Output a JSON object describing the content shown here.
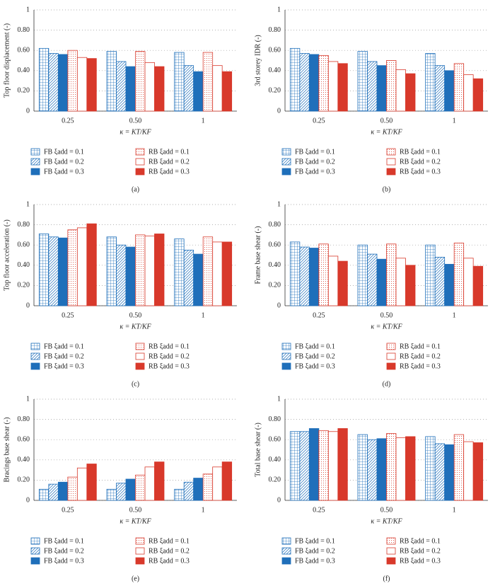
{
  "chart_data": [
    {
      "type": "bar",
      "label": "(a)",
      "ylabel": "Top floor displacement (-)",
      "xlabel": "κ = KT/KF",
      "categories": [
        "0.25",
        "0.50",
        "1"
      ],
      "ylim": [
        0,
        1
      ],
      "yticks": [
        0,
        {
          "value": 0.2,
          "label": "0.20"
        },
        {
          "value": 0.4,
          "label": "0.40"
        },
        {
          "value": 0.6,
          "label": "0.60"
        },
        {
          "value": 0.8,
          "label": "0.80"
        },
        1
      ],
      "grid": true,
      "series": [
        {
          "name": "FB ξadd = 0.1",
          "color": "#1f6fba",
          "pattern": "grid",
          "values": [
            0.62,
            0.59,
            0.58
          ]
        },
        {
          "name": "FB ξadd = 0.2",
          "color": "#1f6fba",
          "pattern": "hatch",
          "values": [
            0.57,
            0.49,
            0.45
          ]
        },
        {
          "name": "FB ξadd = 0.3",
          "color": "#1f6fba",
          "pattern": "solid",
          "values": [
            0.56,
            0.44,
            0.39
          ]
        },
        {
          "name": "RB ξadd = 0.1",
          "color": "#d8392b",
          "pattern": "dots",
          "values": [
            0.6,
            0.59,
            0.58
          ]
        },
        {
          "name": "RB ξadd = 0.2",
          "color": "#d8392b",
          "pattern": "none",
          "values": [
            0.53,
            0.48,
            0.45
          ]
        },
        {
          "name": "RB ξadd = 0.3",
          "color": "#d8392b",
          "pattern": "solid",
          "values": [
            0.52,
            0.44,
            0.39
          ]
        }
      ]
    },
    {
      "type": "bar",
      "label": "(b)",
      "ylabel": "3rd storey IDR (-)",
      "xlabel": "κ = KT/KF",
      "categories": [
        "0.25",
        "0.50",
        "1"
      ],
      "ylim": [
        0,
        1
      ],
      "yticks": [
        0,
        {
          "value": 0.2,
          "label": "0.20"
        },
        {
          "value": 0.4,
          "label": "0.40"
        },
        {
          "value": 0.6,
          "label": "0.60"
        },
        {
          "value": 0.8,
          "label": "0.80"
        },
        1
      ],
      "grid": true,
      "series": [
        {
          "name": "FB ξadd = 0.1",
          "color": "#1f6fba",
          "pattern": "grid",
          "values": [
            0.62,
            0.59,
            0.57
          ]
        },
        {
          "name": "FB ξadd = 0.2",
          "color": "#1f6fba",
          "pattern": "hatch",
          "values": [
            0.57,
            0.49,
            0.45
          ]
        },
        {
          "name": "FB ξadd = 0.3",
          "color": "#1f6fba",
          "pattern": "solid",
          "values": [
            0.56,
            0.45,
            0.4
          ]
        },
        {
          "name": "RB ξadd = 0.1",
          "color": "#d8392b",
          "pattern": "dots",
          "values": [
            0.55,
            0.5,
            0.47
          ]
        },
        {
          "name": "RB ξadd = 0.2",
          "color": "#d8392b",
          "pattern": "none",
          "values": [
            0.49,
            0.41,
            0.36
          ]
        },
        {
          "name": "RB ξadd = 0.3",
          "color": "#d8392b",
          "pattern": "solid",
          "values": [
            0.47,
            0.37,
            0.32
          ]
        }
      ]
    },
    {
      "type": "bar",
      "label": "(c)",
      "ylabel": "Top floor acceleration (-)",
      "xlabel": "κ = KT/KF",
      "categories": [
        "0.25",
        "0.50",
        "1"
      ],
      "ylim": [
        0,
        1
      ],
      "yticks": [
        0,
        {
          "value": 0.2,
          "label": "0.20"
        },
        {
          "value": 0.4,
          "label": "0.40"
        },
        {
          "value": 0.6,
          "label": "0.60"
        },
        {
          "value": 0.8,
          "label": "0.80"
        },
        1
      ],
      "grid": true,
      "series": [
        {
          "name": "FB ξadd = 0.1",
          "color": "#1f6fba",
          "pattern": "grid",
          "values": [
            0.71,
            0.68,
            0.66
          ]
        },
        {
          "name": "FB ξadd = 0.2",
          "color": "#1f6fba",
          "pattern": "hatch",
          "values": [
            0.68,
            0.6,
            0.55
          ]
        },
        {
          "name": "FB ξadd = 0.3",
          "color": "#1f6fba",
          "pattern": "solid",
          "values": [
            0.67,
            0.58,
            0.51
          ]
        },
        {
          "name": "RB ξadd = 0.1",
          "color": "#d8392b",
          "pattern": "dots",
          "values": [
            0.75,
            0.7,
            0.68
          ]
        },
        {
          "name": "RB ξadd = 0.2",
          "color": "#d8392b",
          "pattern": "none",
          "values": [
            0.77,
            0.69,
            0.63
          ]
        },
        {
          "name": "RB ξadd = 0.3",
          "color": "#d8392b",
          "pattern": "solid",
          "values": [
            0.81,
            0.71,
            0.63
          ]
        }
      ]
    },
    {
      "type": "bar",
      "label": "(d)",
      "ylabel": "Frame base shear (-)",
      "xlabel": "κ = KT/KF",
      "categories": [
        "0.25",
        "0.50",
        "1"
      ],
      "ylim": [
        0,
        1
      ],
      "yticks": [
        0,
        {
          "value": 0.2,
          "label": "0.20"
        },
        {
          "value": 0.4,
          "label": "0.40"
        },
        {
          "value": 0.6,
          "label": "0.60"
        },
        {
          "value": 0.8,
          "label": "0.80"
        },
        1
      ],
      "grid": true,
      "series": [
        {
          "name": "FB ξadd = 0.1",
          "color": "#1f6fba",
          "pattern": "grid",
          "values": [
            0.63,
            0.6,
            0.6
          ]
        },
        {
          "name": "FB ξadd = 0.2",
          "color": "#1f6fba",
          "pattern": "hatch",
          "values": [
            0.58,
            0.51,
            0.48
          ]
        },
        {
          "name": "FB ξadd = 0.3",
          "color": "#1f6fba",
          "pattern": "solid",
          "values": [
            0.57,
            0.46,
            0.41
          ]
        },
        {
          "name": "RB ξadd = 0.1",
          "color": "#d8392b",
          "pattern": "dots",
          "values": [
            0.61,
            0.61,
            0.62
          ]
        },
        {
          "name": "RB ξadd = 0.2",
          "color": "#d8392b",
          "pattern": "none",
          "values": [
            0.49,
            0.47,
            0.47
          ]
        },
        {
          "name": "RB ξadd = 0.3",
          "color": "#d8392b",
          "pattern": "solid",
          "values": [
            0.44,
            0.4,
            0.39
          ]
        }
      ]
    },
    {
      "type": "bar",
      "label": "(e)",
      "ylabel": "Bracings base shear (-)",
      "xlabel": "κ = KT/KF",
      "categories": [
        "0.25",
        "0.50",
        "1"
      ],
      "ylim": [
        0,
        1
      ],
      "yticks": [
        0,
        {
          "value": 0.2,
          "label": "0.20"
        },
        {
          "value": 0.4,
          "label": "0.40"
        },
        {
          "value": 0.6,
          "label": "0.60"
        },
        {
          "value": 0.8,
          "label": "0.80"
        },
        1
      ],
      "grid": true,
      "series": [
        {
          "name": "FB ξadd = 0.1",
          "color": "#1f6fba",
          "pattern": "grid",
          "values": [
            0.11,
            0.11,
            0.11
          ]
        },
        {
          "name": "FB ξadd = 0.2",
          "color": "#1f6fba",
          "pattern": "hatch",
          "values": [
            0.16,
            0.17,
            0.18
          ]
        },
        {
          "name": "FB ξadd = 0.3",
          "color": "#1f6fba",
          "pattern": "solid",
          "values": [
            0.18,
            0.21,
            0.22
          ]
        },
        {
          "name": "RB ξadd = 0.1",
          "color": "#d8392b",
          "pattern": "dots",
          "values": [
            0.23,
            0.25,
            0.26
          ]
        },
        {
          "name": "RB ξadd = 0.2",
          "color": "#d8392b",
          "pattern": "none",
          "values": [
            0.32,
            0.33,
            0.33
          ]
        },
        {
          "name": "RB ξadd = 0.3",
          "color": "#d8392b",
          "pattern": "solid",
          "values": [
            0.36,
            0.38,
            0.38
          ]
        }
      ]
    },
    {
      "type": "bar",
      "label": "(f)",
      "ylabel": "Total base shear (-)",
      "xlabel": "κ = KT/KF",
      "categories": [
        "0.25",
        "0.50",
        "1"
      ],
      "ylim": [
        0,
        1
      ],
      "yticks": [
        0,
        {
          "value": 0.2,
          "label": "0.20"
        },
        {
          "value": 0.4,
          "label": "0.40"
        },
        {
          "value": 0.6,
          "label": "0.60"
        },
        {
          "value": 0.8,
          "label": "0.80"
        },
        1
      ],
      "grid": true,
      "series": [
        {
          "name": "FB ξadd = 0.1",
          "color": "#1f6fba",
          "pattern": "grid",
          "values": [
            0.68,
            0.65,
            0.63
          ]
        },
        {
          "name": "FB ξadd = 0.2",
          "color": "#1f6fba",
          "pattern": "hatch",
          "values": [
            0.68,
            0.6,
            0.56
          ]
        },
        {
          "name": "FB ξadd = 0.3",
          "color": "#1f6fba",
          "pattern": "solid",
          "values": [
            0.71,
            0.61,
            0.55
          ]
        },
        {
          "name": "RB ξadd = 0.1",
          "color": "#d8392b",
          "pattern": "dots",
          "values": [
            0.69,
            0.66,
            0.65
          ]
        },
        {
          "name": "RB ξadd = 0.2",
          "color": "#d8392b",
          "pattern": "none",
          "values": [
            0.68,
            0.62,
            0.58
          ]
        },
        {
          "name": "RB ξadd = 0.3",
          "color": "#d8392b",
          "pattern": "solid",
          "values": [
            0.71,
            0.63,
            0.57
          ]
        }
      ]
    }
  ]
}
